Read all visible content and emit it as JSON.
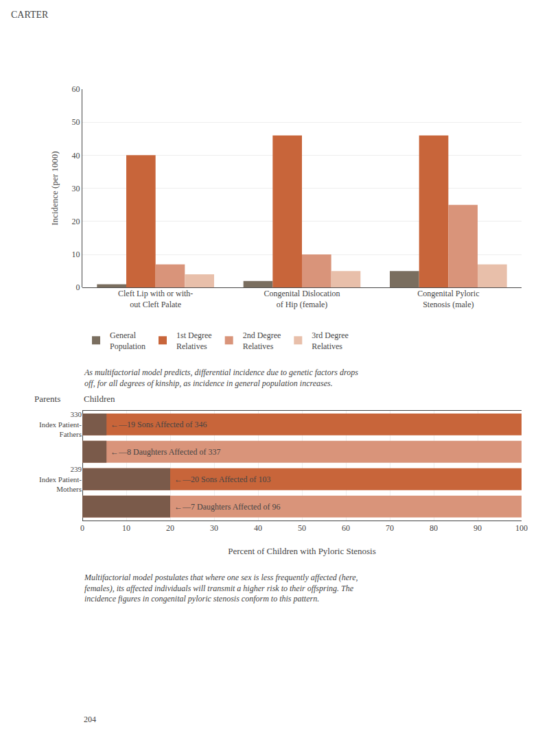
{
  "chart_data": [
    {
      "type": "bar",
      "title": "CARTER",
      "categories": [
        "Cleft Lip with or with-\nout Cleft Palate",
        "Congenital Dislocation\nof Hip (female)",
        "Congenital Pyloric\nStenosis (male)"
      ],
      "series": [
        {
          "name": "General\nPopulation",
          "color": "#7a6e5f",
          "values": [
            1.0,
            2.0,
            5.0
          ]
        },
        {
          "name": "1st Degree\nRelatives",
          "color": "#c8653a",
          "values": [
            40.0,
            46.0,
            46.0
          ]
        },
        {
          "name": "2nd Degree\nRelatives",
          "color": "#d9947a",
          "values": [
            7.0,
            10.0,
            25.0
          ]
        },
        {
          "name": "3rd Degree\nRelatives",
          "color": "#e8bfaa",
          "values": [
            4.0,
            5.0,
            7.0
          ]
        }
      ],
      "ylabel": "Incidence (per 1000)",
      "ylim": [
        0,
        60
      ],
      "yticks": [
        0,
        10,
        20,
        30,
        40,
        50,
        60
      ],
      "grid": true,
      "legend": "bottom",
      "annotations": [
        {
          "text": "As multifactorial model predicts, differential incidence due to genetic factors drops\noff, for all degrees of kinship, as incidence in general population increases."
        }
      ]
    },
    {
      "type": "bar",
      "orientation": "horizontal",
      "title": "Children",
      "ylabel": "Parents",
      "xlabel": "Percent of Children with Pyloric Stenosis",
      "categories": [
        "330\nIndex Patient-\nFathers",
        null,
        "239\nIndex Patient-\nMothers",
        null
      ],
      "series": [
        {
          "colors": [
            "#c8653a",
            "#d9947a",
            "#c8653a",
            "#d9947a"
          ],
          "values": [
            100,
            100,
            100,
            100
          ]
        },
        {
          "color": "#7a5a4a",
          "values": [
            5.5,
            5.5,
            20.0,
            20.0
          ]
        }
      ],
      "xlim": [
        0,
        100
      ],
      "xticks": [
        0,
        10,
        20,
        30,
        40,
        50,
        60,
        70,
        80,
        90,
        100
      ],
      "grid": true,
      "annotations": [
        {
          "text": "←—19 Sons Affected of 346",
          "x": 5.5,
          "y": 0
        },
        {
          "text": "←—8 Daughters Affected of 337",
          "x": 5.5,
          "y": 1
        },
        {
          "text": "←—20 Sons Affected of 103",
          "x": 20.0,
          "y": 2
        },
        {
          "text": "←—7 Daughters Affected of 96",
          "x": 20.0,
          "y": 3
        },
        {
          "text": "Multifactorial model postulates that where one sex is less frequently affected (here,\nfemales), its affected individuals will transmit a higher risk to their offspring. The\nincidence figures in congenital pyloric stenosis conform to this pattern."
        },
        {
          "text": "204"
        }
      ]
    }
  ]
}
